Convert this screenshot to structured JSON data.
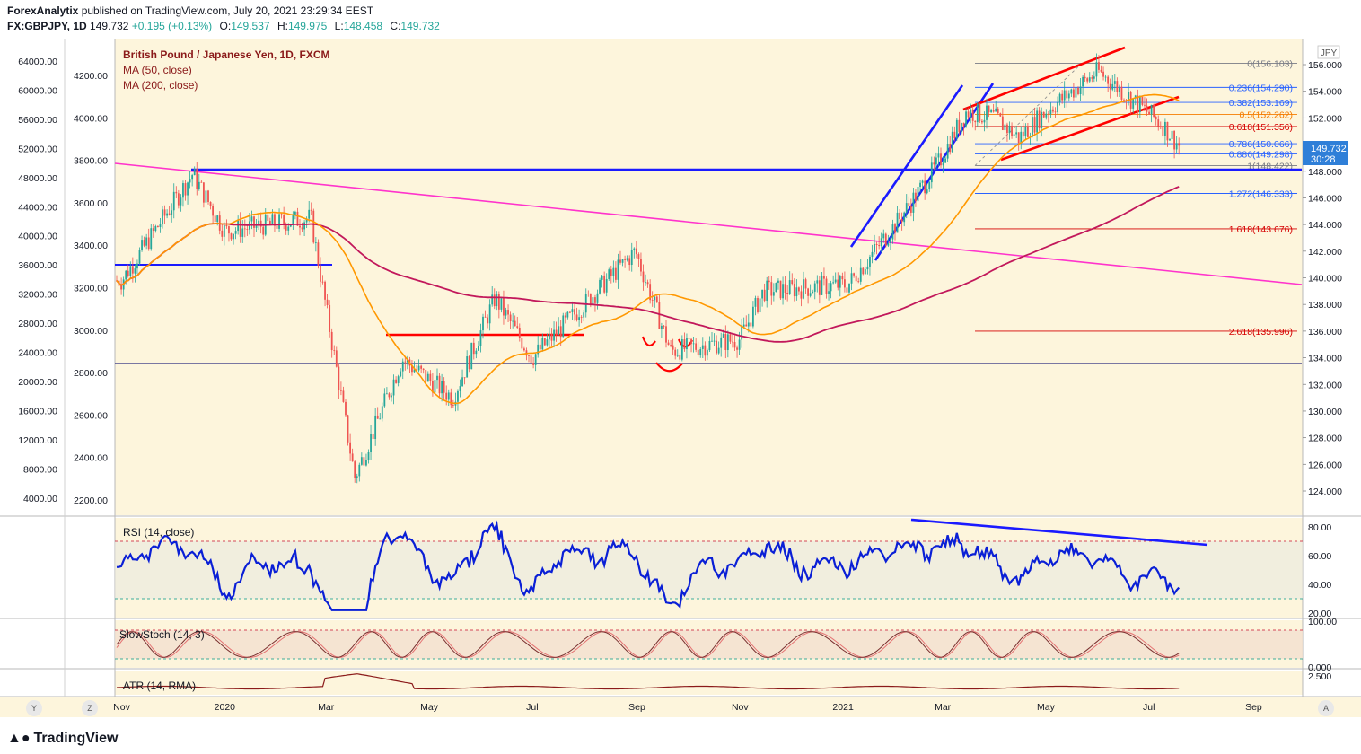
{
  "header": {
    "publisher": "ForexAnalytix",
    "published_text": "published on TradingView.com, July 20, 2021 23:29:34 EEST",
    "symbol": "FX:GBPJPY, 1D",
    "last": "149.732",
    "change": "+0.195 (+0.13%)",
    "o_label": "O:",
    "o_value": "149.537",
    "h_label": "H:",
    "h_value": "149.975",
    "l_label": "L:",
    "l_value": "148.458",
    "c_label": "C:",
    "c_value": "149.732"
  },
  "legend": {
    "title": "British Pound / Japanese Yen, 1D, FXCM",
    "ma50": "MA (50, close)",
    "ma200": "MA (200, close)"
  },
  "panes": {
    "rsi_label": "RSI (14, close)",
    "stoch_label": "SlowStoch (14, 3)",
    "atr_label": "ATR (14, RMA)"
  },
  "price_axis": {
    "currency": "JPY",
    "ticks": [
      "156.000",
      "154.000",
      "152.000",
      "150.000",
      "148.000",
      "146.000",
      "144.000",
      "142.000",
      "140.000",
      "138.000",
      "136.000",
      "134.000",
      "132.000",
      "130.000",
      "128.000",
      "126.000",
      "124.000"
    ],
    "last_price_tag": "149.732",
    "countdown_tag": "30:28"
  },
  "left_axes": {
    "outer": [
      "64000.00",
      "60000.00",
      "56000.00",
      "52000.00",
      "48000.00",
      "44000.00",
      "40000.00",
      "36000.00",
      "32000.00",
      "28000.00",
      "24000.00",
      "20000.00",
      "16000.00",
      "12000.00",
      "8000.00",
      "4000.00"
    ],
    "inner": [
      "4200.00",
      "4000.00",
      "3800.00",
      "3600.00",
      "3400.00",
      "3200.00",
      "3000.00",
      "2800.00",
      "2600.00",
      "2400.00",
      "2200.00"
    ]
  },
  "rsi_axis": [
    "80.00",
    "60.00",
    "40.00",
    "20.00"
  ],
  "stoch_axis": [
    "100.00",
    "0.000"
  ],
  "atr_axis": [
    "2.500"
  ],
  "time_axis": [
    "Nov",
    "2020",
    "Mar",
    "May",
    "Jul",
    "Sep",
    "Nov",
    "2021",
    "Mar",
    "May",
    "Jul",
    "Sep"
  ],
  "fib_levels": [
    {
      "label": "0(156.103)",
      "price": 156.103,
      "color": "#787b86"
    },
    {
      "label": "0.236(154.290)",
      "price": 154.29,
      "color": "#2962ff"
    },
    {
      "label": "0.382(153.169)",
      "price": 153.169,
      "color": "#2962ff"
    },
    {
      "label": "0.5(152.262)",
      "price": 152.262,
      "color": "#f57c00"
    },
    {
      "label": "0.618(151.356)",
      "price": 151.356,
      "color": "#d50000"
    },
    {
      "label": "0.786(150.066)",
      "price": 150.066,
      "color": "#2962ff"
    },
    {
      "label": "0.886(149.298)",
      "price": 149.298,
      "color": "#2962ff"
    },
    {
      "label": "1(148.422)",
      "price": 148.422,
      "color": "#787b86"
    },
    {
      "label": "1.272(146.333)",
      "price": 146.333,
      "color": "#2962ff"
    },
    {
      "label": "1.618(143.676)",
      "price": 143.676,
      "color": "#d50000"
    },
    {
      "label": "2.618(135.996)",
      "price": 135.996,
      "color": "#d50000"
    }
  ],
  "footer": {
    "logo_text": "TradingView",
    "btn_y": "Y",
    "btn_z": "Z",
    "btn_a": "A"
  },
  "colors": {
    "background": "#fdf5dc",
    "bull": "#26a69a",
    "bear": "#ef5350",
    "ma50": "#ff9800",
    "ma200": "#c2185b",
    "trend_blue": "#1a1aff",
    "trend_red": "#ff0000",
    "trend_magenta": "#ff33cc",
    "rsi_line": "#0a1fd6"
  },
  "chart_data": {
    "type": "candlestick",
    "title": "British Pound / Japanese Yen, 1D, FXCM",
    "ylabel": "JPY",
    "ylim": [
      122.5,
      157.5
    ],
    "x_range": [
      "2019-10-28",
      "2021-09-30"
    ],
    "approximate_closes": [
      {
        "date": "2019-11-01",
        "close": 139.8
      },
      {
        "date": "2019-12-13",
        "close": 147.8
      },
      {
        "date": "2020-01-01",
        "close": 143.5
      },
      {
        "date": "2020-02-21",
        "close": 144.5
      },
      {
        "date": "2020-03-18",
        "close": 125.0
      },
      {
        "date": "2020-04-15",
        "close": 133.9
      },
      {
        "date": "2020-05-15",
        "close": 131.0
      },
      {
        "date": "2020-06-09",
        "close": 138.5
      },
      {
        "date": "2020-07-01",
        "close": 134.0
      },
      {
        "date": "2020-08-31",
        "close": 142.0
      },
      {
        "date": "2020-09-21",
        "close": 134.5
      },
      {
        "date": "2020-11-01",
        "close": 135.4
      },
      {
        "date": "2020-11-15",
        "close": 139.0
      },
      {
        "date": "2021-01-04",
        "close": 139.5
      },
      {
        "date": "2021-02-01",
        "close": 144.0
      },
      {
        "date": "2021-02-26",
        "close": 148.5
      },
      {
        "date": "2021-03-15",
        "close": 152.5
      },
      {
        "date": "2021-04-01",
        "close": 152.0
      },
      {
        "date": "2021-04-15",
        "close": 150.5
      },
      {
        "date": "2021-05-01",
        "close": 152.5
      },
      {
        "date": "2021-06-01",
        "close": 155.5
      },
      {
        "date": "2021-06-20",
        "close": 153.5
      },
      {
        "date": "2021-07-09",
        "close": 151.5
      },
      {
        "date": "2021-07-20",
        "close": 149.732
      }
    ]
  }
}
